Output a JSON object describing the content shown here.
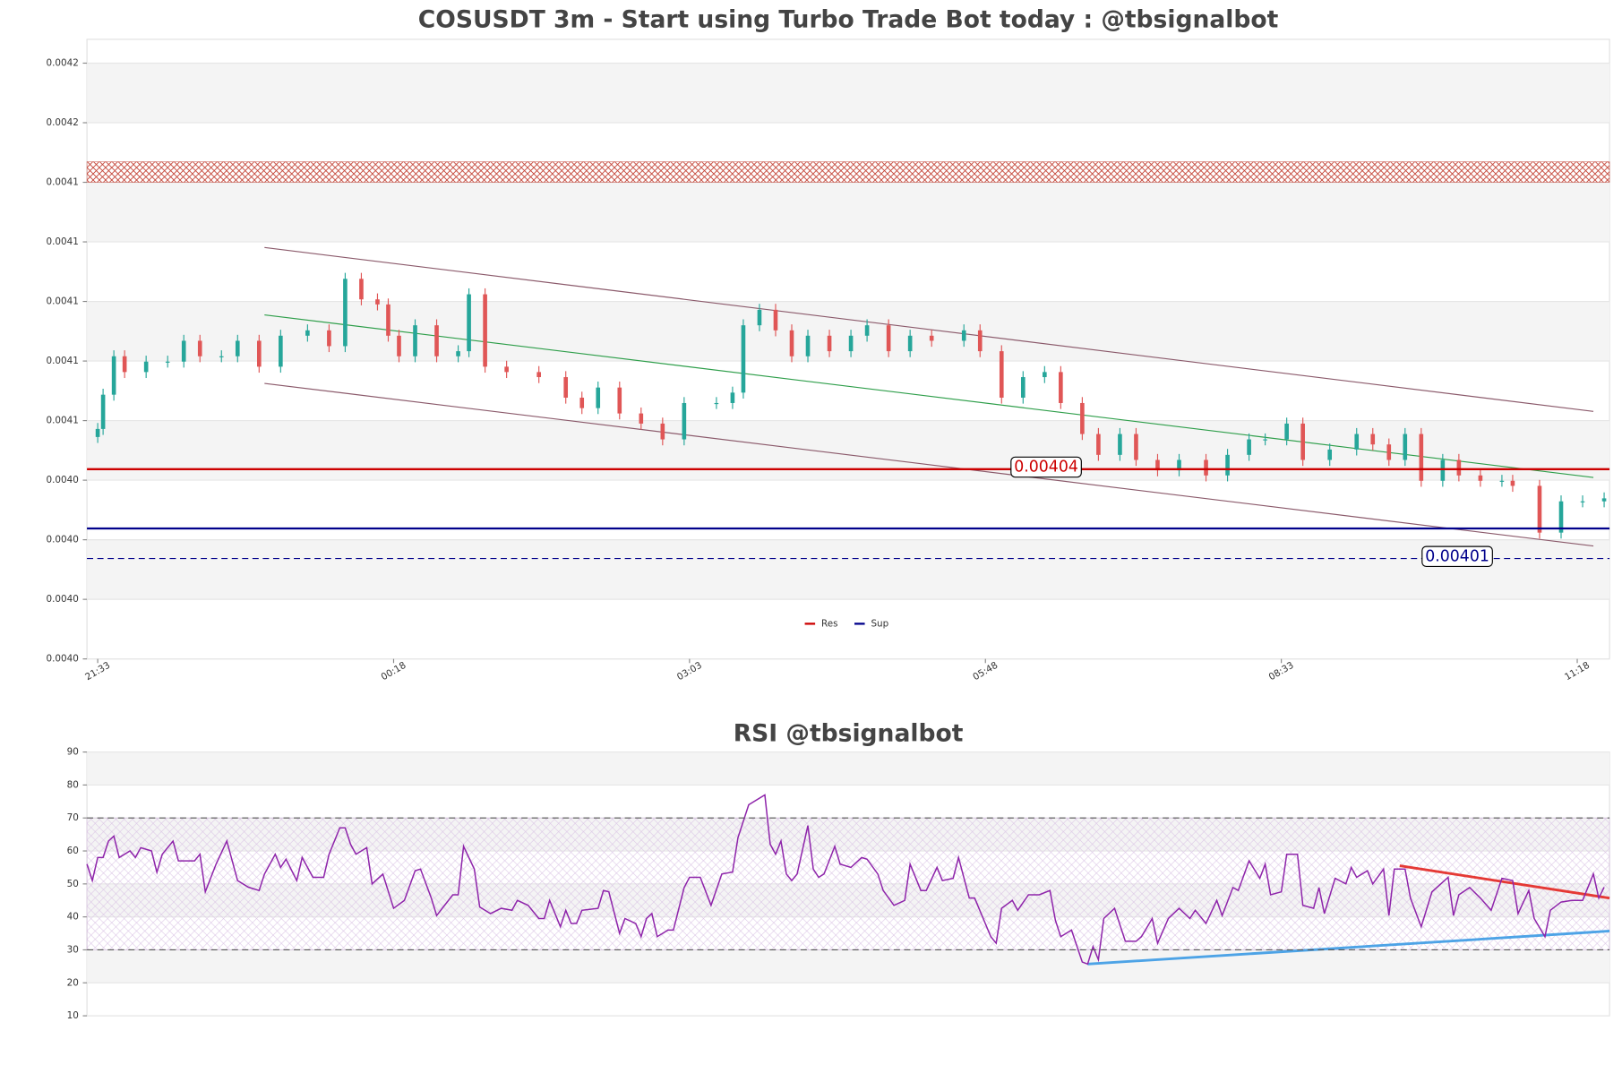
{
  "chart_data": [
    {
      "type": "candlestick",
      "title": "COSUSDT 3m - Start using Turbo Trade Bot today : @tbsignalbot",
      "x": [
        0,
        1,
        3,
        5,
        9,
        13,
        16,
        19,
        23,
        26,
        30,
        34,
        39,
        43,
        46,
        49,
        52,
        54,
        56,
        59,
        63,
        67,
        69,
        72,
        76,
        82,
        87,
        90,
        93,
        97,
        101,
        105,
        109,
        115,
        118,
        120,
        123,
        126,
        129,
        132,
        136,
        140,
        143,
        147,
        151,
        155,
        161,
        164,
        168,
        172,
        176,
        179,
        183,
        186,
        190,
        193,
        197,
        201,
        206,
        210,
        214,
        217,
        221,
        224,
        229,
        234,
        237,
        240,
        243,
        246,
        250,
        253,
        257,
        261,
        263,
        268,
        272,
        276,
        280
      ],
      "open": [
        0.0040545,
        0.0040572,
        0.0040687,
        0.0040816,
        0.0040763,
        0.0040798,
        0.0040798,
        0.0040868,
        0.0040816,
        0.0040816,
        0.0040868,
        0.0040781,
        0.0040885,
        0.0040903,
        0.004085,
        0.0041076,
        0.0041007,
        0.004099,
        0.0040885,
        0.0040816,
        0.004092,
        0.0040816,
        0.0040833,
        0.0041024,
        0.0040781,
        0.0040763,
        0.0040746,
        0.0040677,
        0.0040642,
        0.0040711,
        0.0040624,
        0.004059,
        0.0040537,
        0.0040659,
        0.0040659,
        0.0040694,
        0.004092,
        0.0040972,
        0.0040903,
        0.0040816,
        0.0040885,
        0.0040833,
        0.0040885,
        0.004092,
        0.0040833,
        0.0040885,
        0.0040868,
        0.0040903,
        0.0040833,
        0.0040677,
        0.0040746,
        0.0040763,
        0.0040659,
        0.0040555,
        0.0040485,
        0.0040555,
        0.0040468,
        0.0040433,
        0.0040468,
        0.0040416,
        0.0040485,
        0.0040537,
        0.0040537,
        0.004059,
        0.0040468,
        0.0040503,
        0.0040555,
        0.004052,
        0.0040468,
        0.0040555,
        0.0040398,
        0.0040468,
        0.0040416,
        0.0040398,
        0.0040398,
        0.0040381,
        0.0040224,
        0.0040329,
        0.0040329
      ],
      "high": [
        0.0040592,
        0.0040707,
        0.0040836,
        0.0040836,
        0.0040818,
        0.0040818,
        0.0040888,
        0.0040888,
        0.0040836,
        0.0040888,
        0.0040888,
        0.0040905,
        0.0040923,
        0.0040923,
        0.0041096,
        0.0041096,
        0.0041027,
        0.004101,
        0.0040905,
        0.004094,
        0.004094,
        0.0040853,
        0.0041044,
        0.0041044,
        0.0040801,
        0.0040783,
        0.0040766,
        0.0040697,
        0.0040731,
        0.0040731,
        0.0040644,
        0.004061,
        0.0040679,
        0.0040679,
        0.0040714,
        0.004094,
        0.0040992,
        0.0040992,
        0.0040923,
        0.0040905,
        0.0040905,
        0.0040905,
        0.004094,
        0.004094,
        0.0040905,
        0.0040905,
        0.0040923,
        0.0040923,
        0.0040853,
        0.0040766,
        0.0040783,
        0.0040783,
        0.0040679,
        0.0040575,
        0.0040575,
        0.0040575,
        0.0040488,
        0.0040488,
        0.0040488,
        0.0040505,
        0.0040557,
        0.0040557,
        0.004061,
        0.004061,
        0.0040523,
        0.0040575,
        0.0040575,
        0.004054,
        0.0040575,
        0.0040575,
        0.0040488,
        0.0040488,
        0.0040436,
        0.0040418,
        0.0040418,
        0.0040401,
        0.0040349,
        0.0040349,
        0.0040359
      ],
      "low": [
        0.0040525,
        0.0040552,
        0.0040667,
        0.0040743,
        0.0040743,
        0.0040778,
        0.0040778,
        0.0040796,
        0.0040796,
        0.0040796,
        0.0040761,
        0.0040761,
        0.0040865,
        0.004083,
        0.004083,
        0.0040987,
        0.004097,
        0.0040865,
        0.0040796,
        0.0040796,
        0.0040796,
        0.0040796,
        0.0040813,
        0.0040761,
        0.0040743,
        0.0040726,
        0.0040657,
        0.0040622,
        0.0040622,
        0.0040604,
        0.004057,
        0.0040517,
        0.0040517,
        0.0040639,
        0.0040639,
        0.0040674,
        0.00409,
        0.0040883,
        0.0040796,
        0.0040796,
        0.0040813,
        0.0040813,
        0.0040865,
        0.0040813,
        0.0040813,
        0.0040848,
        0.0040848,
        0.0040813,
        0.0040657,
        0.0040657,
        0.0040726,
        0.0040639,
        0.0040535,
        0.0040465,
        0.0040465,
        0.0040448,
        0.0040413,
        0.0040413,
        0.0040396,
        0.0040396,
        0.0040465,
        0.0040517,
        0.0040517,
        0.0040448,
        0.0040448,
        0.0040483,
        0.00405,
        0.0040448,
        0.0040448,
        0.0040378,
        0.0040378,
        0.0040396,
        0.0040378,
        0.0040378,
        0.0040361,
        0.0040204,
        0.0040204,
        0.0040309,
        0.0040309
      ],
      "close": [
        0.0040572,
        0.0040687,
        0.0040816,
        0.0040763,
        0.0040798,
        0.0040798,
        0.0040868,
        0.0040816,
        0.0040816,
        0.0040868,
        0.0040781,
        0.0040885,
        0.0040903,
        0.004085,
        0.0041076,
        0.0041007,
        0.004099,
        0.0040885,
        0.0040816,
        0.004092,
        0.0040816,
        0.0040833,
        0.0041024,
        0.0040781,
        0.0040763,
        0.0040746,
        0.0040677,
        0.0040642,
        0.0040711,
        0.0040624,
        0.004059,
        0.0040537,
        0.0040659,
        0.0040659,
        0.0040694,
        0.004092,
        0.0040972,
        0.0040903,
        0.0040816,
        0.0040885,
        0.0040833,
        0.0040885,
        0.004092,
        0.0040833,
        0.0040885,
        0.0040868,
        0.0040903,
        0.0040833,
        0.0040677,
        0.0040746,
        0.0040763,
        0.0040659,
        0.0040555,
        0.0040485,
        0.0040555,
        0.0040468,
        0.0040433,
        0.0040468,
        0.0040416,
        0.0040485,
        0.0040537,
        0.0040537,
        0.004059,
        0.0040468,
        0.0040503,
        0.0040555,
        0.004052,
        0.0040468,
        0.0040555,
        0.0040398,
        0.0040468,
        0.0040416,
        0.0040398,
        0.0040398,
        0.0040381,
        0.0040224,
        0.0040329,
        0.0040329,
        0.0040339
      ],
      "colors": {
        "up": "#26a69a",
        "down": "#e05656"
      },
      "xlim": [
        -2,
        281
      ],
      "xticks": [
        {
          "value": 0,
          "label": "21:33"
        },
        {
          "value": 55,
          "label": "00:18"
        },
        {
          "value": 110,
          "label": "03:03"
        },
        {
          "value": 165,
          "label": "05:48"
        },
        {
          "value": 220,
          "label": "08:33"
        },
        {
          "value": 275,
          "label": "11:18"
        }
      ],
      "ylim": [
        0.00398,
        0.004188
      ],
      "yticks": [
        {
          "value": 0.00398,
          "label": "0.0040"
        },
        {
          "value": 0.004,
          "label": "0.0040"
        },
        {
          "value": 0.00402,
          "label": "0.0040"
        },
        {
          "value": 0.00404,
          "label": "0.0040"
        },
        {
          "value": 0.00406,
          "label": "0.0041"
        },
        {
          "value": 0.00408,
          "label": "0.0041"
        },
        {
          "value": 0.0041,
          "label": "0.0041"
        },
        {
          "value": 0.00412,
          "label": "0.0041"
        },
        {
          "value": 0.00414,
          "label": "0.0041"
        },
        {
          "value": 0.00416,
          "label": "0.0042"
        },
        {
          "value": 0.00418,
          "label": "0.0042"
        }
      ],
      "zones": [
        {
          "from": 0.00414,
          "to": 0.0041469,
          "color": "#c0392b"
        }
      ],
      "hlines": [
        {
          "name": "Res",
          "value": 0.0040437,
          "value_label": "0.00404",
          "color": "#cc0000",
          "style": "solid"
        },
        {
          "name": "Sup",
          "value": 0.0040238,
          "color": "#00008b",
          "style": "solid"
        },
        {
          "value": 0.0040137,
          "value_label": "0.00401",
          "color": "#00008b",
          "style": "dashed"
        }
      ],
      "trendlines": [
        {
          "x": [
            31,
            278
          ],
          "y": [
            0.0041181,
            0.0040631
          ],
          "color": "#8b5a6b"
        },
        {
          "x": [
            31,
            278
          ],
          "y": [
            0.0040955,
            0.0040409
          ],
          "color": "#2e9e4a"
        },
        {
          "x": [
            31,
            278
          ],
          "y": [
            0.0040725,
            0.0040179
          ],
          "color": "#8b5a6b"
        }
      ],
      "legend": "bottom-center",
      "grid": true
    },
    {
      "type": "line",
      "title": "RSI @tbsignalbot",
      "x": [
        -2,
        -1,
        0,
        1,
        2,
        3,
        4,
        6,
        7,
        8,
        10,
        11,
        12,
        14,
        15,
        18,
        19,
        20,
        22,
        24,
        26,
        28,
        30,
        31,
        33,
        34,
        35,
        37,
        38,
        40,
        42,
        43,
        45,
        46,
        47,
        48,
        50,
        51,
        53,
        55,
        57,
        59,
        60,
        62,
        63,
        66,
        67,
        68,
        70,
        71,
        73,
        75,
        77,
        78,
        80,
        82,
        83,
        84,
        86,
        87,
        88,
        89,
        90,
        93,
        94,
        95,
        97,
        98,
        100,
        101,
        102,
        103,
        104,
        106,
        107,
        109,
        110,
        112,
        114,
        116,
        118,
        119,
        121,
        124,
        125,
        126,
        127,
        128,
        129,
        130,
        132,
        133,
        134,
        135,
        137,
        138,
        140,
        142,
        143,
        145,
        146,
        148,
        150,
        151,
        153,
        154,
        156,
        157,
        159,
        160,
        162,
        163,
        166,
        167,
        168,
        170,
        171,
        173,
        175,
        177,
        178,
        179,
        181,
        183,
        184,
        185,
        186,
        187,
        189,
        191,
        193,
        194,
        196,
        197,
        199,
        201,
        203,
        204,
        206,
        208,
        209,
        211,
        212,
        214,
        216,
        217,
        218,
        220,
        221,
        223,
        224,
        226,
        227,
        228,
        230,
        232,
        233,
        234,
        236,
        237,
        239,
        240,
        241,
        243,
        244,
        246,
        248,
        251,
        252,
        253,
        255,
        257,
        259,
        261,
        263,
        264,
        266,
        267,
        269,
        270,
        272,
        274,
        276,
        278,
        279,
        280
      ],
      "values": [
        56,
        51,
        58,
        58,
        63,
        64.5,
        58,
        60,
        58,
        61,
        60,
        53.5,
        59,
        63,
        57,
        57,
        59,
        47.6,
        56,
        63,
        51,
        49,
        48,
        53,
        59,
        55,
        57.5,
        51,
        58,
        52,
        52,
        59,
        67,
        67,
        62,
        59,
        61,
        50,
        53,
        42.6,
        45,
        54,
        54.5,
        45.7,
        40.4,
        46.7,
        46.7,
        61.4,
        54.5,
        43,
        41,
        42.6,
        42,
        45,
        43.5,
        39.5,
        39.5,
        45,
        37,
        42,
        38,
        38,
        42,
        42.6,
        48,
        47.6,
        35,
        39.5,
        38,
        34,
        39.5,
        41,
        34,
        36,
        36,
        48.9,
        52,
        52,
        43.5,
        53,
        53.6,
        64,
        74,
        77,
        62,
        59,
        63,
        53,
        51,
        53,
        67.7,
        54.5,
        52,
        53,
        61.4,
        56,
        55,
        58,
        57.5,
        53,
        48,
        43.5,
        45,
        56,
        48,
        48,
        55,
        51,
        51.7,
        58,
        45.7,
        45.7,
        34,
        32,
        42.6,
        45,
        42,
        46.7,
        46.7,
        48,
        39,
        34,
        36,
        26.3,
        25.7,
        31,
        27,
        39.5,
        42.6,
        32.6,
        32.6,
        34,
        39.5,
        32,
        39.5,
        42.6,
        39.5,
        42,
        38,
        45,
        40.4,
        48.9,
        48,
        57,
        51.7,
        56,
        46.7,
        47.6,
        59,
        59,
        43.5,
        42.6,
        48.9,
        41,
        51.7,
        50,
        55,
        52,
        54,
        50,
        54.5,
        40.4,
        54.5,
        54.5,
        45.7,
        37,
        47.6,
        52,
        40.4,
        46.7,
        48.9,
        45.7,
        42,
        51.7,
        51,
        41,
        48,
        39.5,
        34,
        42,
        44.5,
        45,
        45,
        53,
        45.7,
        49
      ],
      "color": "#8e24aa",
      "xlim": [
        -2,
        281
      ],
      "ylim": [
        10,
        90
      ],
      "yticks": [
        10,
        20,
        30,
        40,
        50,
        60,
        70,
        80,
        90
      ],
      "zones": [
        {
          "from": 30,
          "to": 70,
          "color": "#c9a6d9"
        }
      ],
      "hlines": [
        {
          "value": 70,
          "color": "#555555",
          "style": "dashed"
        },
        {
          "value": 30,
          "color": "#555555",
          "style": "dashed"
        }
      ],
      "trendlines": [
        {
          "x": [
            184,
            281
          ],
          "y": [
            25.7,
            35.7
          ],
          "color": "#4da3e6"
        },
        {
          "x": [
            242,
            281
          ],
          "y": [
            55.5,
            45.7
          ],
          "color": "#e53935"
        }
      ],
      "grid": true
    }
  ]
}
